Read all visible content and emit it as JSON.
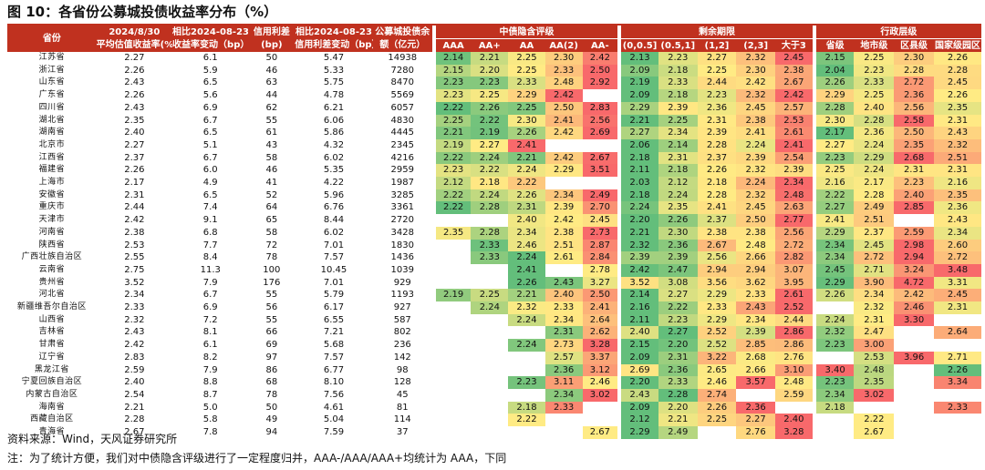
{
  "title": "图 10：各省份公募城投债收益率分布（%）",
  "footer": {
    "source": "资料来源：Wind，天风证券研究所",
    "note": "注：为了统计方便，我们对中债隐含评级进行了一定程度归并，AAA-/AAA/AAA+均统计为 AAA，下同"
  },
  "headers": {
    "province": "省份",
    "yield_line1": "2024/8/30",
    "yield_line2": "平均估值收益率(%)",
    "chg_line1": "相比2024-08-23",
    "chg_line2": "收益率变动（bp）",
    "spread_line1": "信用利差",
    "spread_line2": "(bp)",
    "schg_line1": "相比2024-08-23",
    "schg_line2": "信用利差变动（bp）",
    "bal_line1": "公募城投债余",
    "bal_line2": "额（亿元）",
    "group_rating": "中债隐含评级",
    "group_term": "剩余期限",
    "group_admin": "行政层级",
    "ratings": [
      "AAA",
      "AA+",
      "AA",
      "AA(2)",
      "AA-"
    ],
    "terms": [
      "(0,0.5]",
      "(0.5,1]",
      "(1,2]",
      "(2,3]",
      "大于3"
    ],
    "admin": [
      "省级",
      "地市级",
      "区县级",
      "国家级园区"
    ]
  },
  "colors": {
    "header_bg": "#c0311f",
    "low": "#63be7b",
    "mid": "#ffeb84",
    "high": "#f8696b"
  },
  "rows": [
    {
      "province": "江苏省",
      "yield": "2.27",
      "chg": "6.1",
      "spread": "50",
      "schg": "5.47",
      "bal": "14938",
      "r": [
        "2.14",
        "2.21",
        "2.25",
        "2.30",
        "2.42"
      ],
      "t": [
        "2.13",
        "2.23",
        "2.27",
        "2.32",
        "2.45"
      ],
      "a": [
        "2.15",
        "2.25",
        "2.30",
        "2.26"
      ]
    },
    {
      "province": "浙江省",
      "yield": "2.26",
      "chg": "5.9",
      "spread": "46",
      "schg": "5.33",
      "bal": "7280",
      "r": [
        "2.15",
        "2.20",
        "2.25",
        "2.33",
        "2.50"
      ],
      "t": [
        "2.09",
        "2.18",
        "2.25",
        "2.30",
        "2.38"
      ],
      "a": [
        "2.04",
        "2.23",
        "2.28",
        "2.28"
      ]
    },
    {
      "province": "山东省",
      "yield": "2.43",
      "chg": "6.5",
      "spread": "63",
      "schg": "5.75",
      "bal": "8470",
      "r": [
        "2.23",
        "2.23",
        "2.33",
        "2.48",
        "2.92"
      ],
      "t": [
        "2.19",
        "2.33",
        "2.44",
        "2.42",
        "2.67"
      ],
      "a": [
        "2.26",
        "2.33",
        "2.72",
        "2.45"
      ]
    },
    {
      "province": "广东省",
      "yield": "2.26",
      "chg": "5.6",
      "spread": "44",
      "schg": "4.78",
      "bal": "5569",
      "r": [
        "2.23",
        "2.25",
        "2.29",
        "2.42",
        ""
      ],
      "t": [
        "2.09",
        "2.18",
        "2.23",
        "2.32",
        "2.42"
      ],
      "a": [
        "2.29",
        "2.25",
        "2.36",
        "2.26"
      ]
    },
    {
      "province": "四川省",
      "yield": "2.43",
      "chg": "6.9",
      "spread": "62",
      "schg": "6.21",
      "bal": "6057",
      "r": [
        "2.22",
        "2.26",
        "2.25",
        "2.50",
        "2.83"
      ],
      "t": [
        "2.29",
        "2.39",
        "2.36",
        "2.45",
        "2.57"
      ],
      "a": [
        "2.28",
        "2.40",
        "2.56",
        "2.35"
      ]
    },
    {
      "province": "湖北省",
      "yield": "2.35",
      "chg": "6.7",
      "spread": "55",
      "schg": "6.06",
      "bal": "4830",
      "r": [
        "2.25",
        "2.22",
        "2.30",
        "2.41",
        "2.56"
      ],
      "t": [
        "2.21",
        "2.25",
        "2.31",
        "2.38",
        "2.53"
      ],
      "a": [
        "2.30",
        "2.28",
        "2.58",
        "2.31"
      ]
    },
    {
      "province": "湖南省",
      "yield": "2.40",
      "chg": "6.5",
      "spread": "61",
      "schg": "5.86",
      "bal": "4445",
      "r": [
        "2.21",
        "2.19",
        "2.26",
        "2.42",
        "2.69"
      ],
      "t": [
        "2.27",
        "2.34",
        "2.39",
        "2.41",
        "2.61"
      ],
      "a": [
        "2.17",
        "2.36",
        "2.50",
        "2.43"
      ]
    },
    {
      "province": "北京市",
      "yield": "2.27",
      "chg": "5.1",
      "spread": "43",
      "schg": "4.32",
      "bal": "2345",
      "r": [
        "2.19",
        "2.27",
        "2.41",
        "",
        ""
      ],
      "t": [
        "2.06",
        "2.14",
        "2.28",
        "2.24",
        "2.41"
      ],
      "a": [
        "2.27",
        "2.24",
        "2.35",
        "2.32"
      ]
    },
    {
      "province": "江西省",
      "yield": "2.37",
      "chg": "6.7",
      "spread": "58",
      "schg": "6.02",
      "bal": "4216",
      "r": [
        "2.22",
        "2.24",
        "2.21",
        "2.42",
        "2.67"
      ],
      "t": [
        "2.18",
        "2.31",
        "2.37",
        "2.39",
        "2.54"
      ],
      "a": [
        "2.23",
        "2.29",
        "2.68",
        "2.51"
      ]
    },
    {
      "province": "福建省",
      "yield": "2.26",
      "chg": "6.0",
      "spread": "46",
      "schg": "5.35",
      "bal": "2959",
      "r": [
        "2.23",
        "2.22",
        "2.24",
        "2.29",
        "3.51"
      ],
      "t": [
        "2.11",
        "2.18",
        "2.26",
        "2.32",
        "2.39"
      ],
      "a": [
        "2.25",
        "2.24",
        "2.31",
        "2.31"
      ]
    },
    {
      "province": "上海市",
      "yield": "2.17",
      "chg": "4.9",
      "spread": "41",
      "schg": "4.22",
      "bal": "1987",
      "r": [
        "2.12",
        "2.18",
        "2.22",
        "",
        ""
      ],
      "t": [
        "2.03",
        "2.12",
        "2.18",
        "2.24",
        "2.34"
      ],
      "a": [
        "2.16",
        "2.17",
        "2.23",
        "2.16"
      ]
    },
    {
      "province": "安徽省",
      "yield": "2.31",
      "chg": "6.5",
      "spread": "52",
      "schg": "5.96",
      "bal": "3285",
      "r": [
        "2.22",
        "2.24",
        "2.26",
        "2.34",
        "2.49"
      ],
      "t": [
        "2.18",
        "2.24",
        "2.28",
        "2.32",
        "2.48"
      ],
      "a": [
        "2.22",
        "2.28",
        "2.40",
        "2.35"
      ]
    },
    {
      "province": "重庆市",
      "yield": "2.44",
      "chg": "7.4",
      "spread": "64",
      "schg": "6.76",
      "bal": "3361",
      "r": [
        "2.22",
        "2.28",
        "2.31",
        "2.39",
        "2.70"
      ],
      "t": [
        "2.24",
        "2.35",
        "2.41",
        "2.45",
        "2.63"
      ],
      "a": [
        "2.27",
        "2.49",
        "2.85",
        "2.36"
      ]
    },
    {
      "province": "天津市",
      "yield": "2.42",
      "chg": "9.1",
      "spread": "65",
      "schg": "8.44",
      "bal": "2720",
      "r": [
        "",
        "",
        "2.40",
        "2.42",
        "2.45"
      ],
      "t": [
        "2.20",
        "2.26",
        "2.37",
        "2.50",
        "2.77"
      ],
      "a": [
        "2.41",
        "2.51",
        "",
        "2.43"
      ]
    },
    {
      "province": "河南省",
      "yield": "2.38",
      "chg": "6.8",
      "spread": "58",
      "schg": "6.02",
      "bal": "3428",
      "r": [
        "2.35",
        "2.28",
        "2.34",
        "2.38",
        "2.73"
      ],
      "t": [
        "2.21",
        "2.30",
        "2.38",
        "2.38",
        "2.56"
      ],
      "a": [
        "2.29",
        "2.37",
        "2.59",
        "2.34"
      ]
    },
    {
      "province": "陕西省",
      "yield": "2.53",
      "chg": "7.7",
      "spread": "72",
      "schg": "7.01",
      "bal": "1830",
      "r": [
        "",
        "2.33",
        "2.46",
        "2.51",
        "2.87"
      ],
      "t": [
        "2.32",
        "2.36",
        "2.67",
        "2.48",
        "2.72"
      ],
      "a": [
        "2.34",
        "2.45",
        "2.98",
        "2.60"
      ]
    },
    {
      "province": "广西壮族自治区",
      "yield": "2.55",
      "chg": "8.4",
      "spread": "78",
      "schg": "7.57",
      "bal": "1436",
      "r": [
        "",
        "2.33",
        "2.24",
        "2.61",
        "2.84"
      ],
      "t": [
        "2.39",
        "2.39",
        "2.56",
        "2.66",
        "2.82"
      ],
      "a": [
        "2.34",
        "2.72",
        "2.94",
        "2.72"
      ]
    },
    {
      "province": "云南省",
      "yield": "2.75",
      "chg": "11.3",
      "spread": "100",
      "schg": "10.45",
      "bal": "1039",
      "r": [
        "",
        "",
        "2.41",
        "",
        "2.78"
      ],
      "t": [
        "2.42",
        "2.47",
        "2.94",
        "2.94",
        "3.07"
      ],
      "a": [
        "2.45",
        "2.71",
        "3.24",
        "3.48"
      ]
    },
    {
      "province": "贵州省",
      "yield": "3.52",
      "chg": "7.9",
      "spread": "176",
      "schg": "7.01",
      "bal": "929",
      "r": [
        "",
        "",
        "2.26",
        "2.43",
        "3.27"
      ],
      "t": [
        "3.52",
        "3.08",
        "3.56",
        "3.62",
        "3.95"
      ],
      "a": [
        "2.29",
        "3.90",
        "4.72",
        "3.31"
      ]
    },
    {
      "province": "河北省",
      "yield": "2.34",
      "chg": "6.7",
      "spread": "55",
      "schg": "5.79",
      "bal": "1193",
      "r": [
        "2.19",
        "2.25",
        "2.21",
        "2.40",
        "2.50"
      ],
      "t": [
        "2.14",
        "2.27",
        "2.29",
        "2.33",
        "2.61"
      ],
      "a": [
        "2.26",
        "2.34",
        "2.42",
        "2.45"
      ]
    },
    {
      "province": "新疆维吾尔自治区",
      "yield": "2.33",
      "chg": "6.9",
      "spread": "56",
      "schg": "6.17",
      "bal": "927",
      "r": [
        "",
        "2.24",
        "2.32",
        "2.33",
        "2.41"
      ],
      "t": [
        "2.16",
        "2.22",
        "2.33",
        "2.43",
        "2.52"
      ],
      "a": [
        "",
        "2.32",
        "2.46",
        "2.31"
      ]
    },
    {
      "province": "山西省",
      "yield": "2.32",
      "chg": "7.2",
      "spread": "55",
      "schg": "6.55",
      "bal": "587",
      "r": [
        "",
        "",
        "2.24",
        "2.34",
        "2.64"
      ],
      "t": [
        "2.11",
        "2.23",
        "2.29",
        "2.34",
        "2.44"
      ],
      "a": [
        "2.24",
        "2.31",
        "3.30",
        ""
      ]
    },
    {
      "province": "吉林省",
      "yield": "2.43",
      "chg": "8.1",
      "spread": "66",
      "schg": "7.21",
      "bal": "802",
      "r": [
        "",
        "",
        "",
        "2.31",
        "2.62"
      ],
      "t": [
        "2.40",
        "2.27",
        "2.52",
        "2.39",
        "2.86"
      ],
      "a": [
        "2.32",
        "2.47",
        "",
        "2.64"
      ]
    },
    {
      "province": "甘肃省",
      "yield": "2.42",
      "chg": "6.1",
      "spread": "69",
      "schg": "5.68",
      "bal": "236",
      "r": [
        "",
        "",
        "2.24",
        "2.73",
        "3.28"
      ],
      "t": [
        "2.15",
        "2.20",
        "2.52",
        "2.85",
        "2.86"
      ],
      "a": [
        "2.23",
        "3.00",
        "",
        ""
      ]
    },
    {
      "province": "辽宁省",
      "yield": "2.83",
      "chg": "8.2",
      "spread": "97",
      "schg": "7.57",
      "bal": "142",
      "r": [
        "",
        "",
        "",
        "2.57",
        "3.37"
      ],
      "t": [
        "2.09",
        "2.31",
        "3.22",
        "2.68",
        "2.76"
      ],
      "a": [
        "",
        "2.53",
        "3.96",
        "2.71"
      ]
    },
    {
      "province": "黑龙江省",
      "yield": "2.59",
      "chg": "7.9",
      "spread": "86",
      "schg": "6.77",
      "bal": "98",
      "r": [
        "",
        "",
        "",
        "2.36",
        "3.12"
      ],
      "t": [
        "2.69",
        "2.36",
        "2.65",
        "2.66",
        "3.10"
      ],
      "a": [
        "3.40",
        "2.48",
        "",
        "2.26"
      ]
    },
    {
      "province": "宁夏回族自治区",
      "yield": "2.40",
      "chg": "8.8",
      "spread": "68",
      "schg": "8.10",
      "bal": "128",
      "r": [
        "",
        "",
        "2.23",
        "3.11",
        "2.46"
      ],
      "t": [
        "2.20",
        "2.33",
        "2.46",
        "3.57",
        "2.48"
      ],
      "a": [
        "2.23",
        "2.35",
        "",
        "3.34"
      ]
    },
    {
      "province": "内蒙古自治区",
      "yield": "2.54",
      "chg": "8.7",
      "spread": "78",
      "schg": "7.56",
      "bal": "45",
      "r": [
        "",
        "",
        "",
        "2.34",
        "3.02"
      ],
      "t": [
        "2.43",
        "2.28",
        "2.74",
        "",
        "2.59"
      ],
      "a": [
        "2.34",
        "3.02",
        "",
        ""
      ]
    },
    {
      "province": "海南省",
      "yield": "2.21",
      "chg": "5.0",
      "spread": "50",
      "schg": "4.61",
      "bal": "81",
      "r": [
        "",
        "",
        "2.18",
        "2.33",
        ""
      ],
      "t": [
        "2.09",
        "2.20",
        "2.26",
        "2.36",
        ""
      ],
      "a": [
        "2.18",
        "",
        "",
        "2.33"
      ]
    },
    {
      "province": "西藏自治区",
      "yield": "2.28",
      "chg": "5.8",
      "spread": "49",
      "schg": "5.04",
      "bal": "114",
      "r": [
        "",
        "",
        "2.22",
        "",
        ""
      ],
      "t": [
        "2.12",
        "2.21",
        "2.25",
        "2.27",
        "2.40"
      ],
      "a": [
        "",
        "2.22",
        "",
        ""
      ]
    },
    {
      "province": "青海省",
      "yield": "2.67",
      "chg": "7.8",
      "spread": "94",
      "schg": "7.59",
      "bal": "37",
      "r": [
        "",
        "",
        "",
        "",
        "2.67"
      ],
      "t": [
        "2.29",
        "2.49",
        "",
        "2.76",
        "3.28"
      ],
      "a": [
        "",
        "2.67",
        "",
        ""
      ]
    }
  ]
}
